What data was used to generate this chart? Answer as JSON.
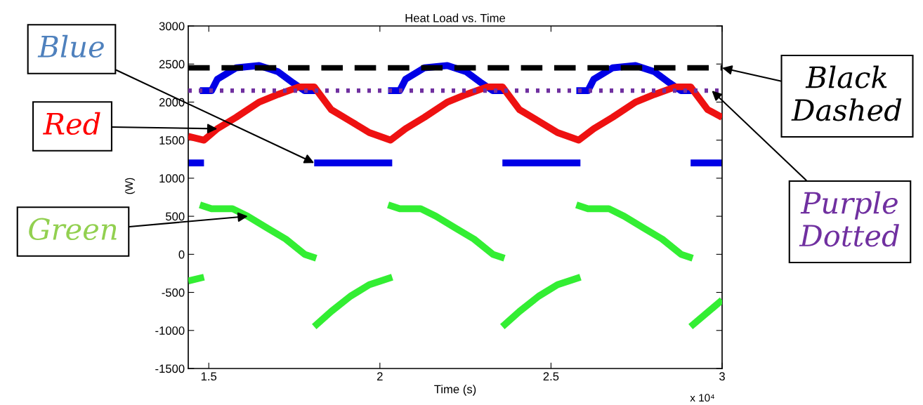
{
  "chart_data": {
    "type": "line",
    "title": "Heat Load vs. Time",
    "xlabel": "Time (s)",
    "ylabel": "(W)",
    "xlim": [
      1.44,
      3.0
    ],
    "ylim": [
      -1500,
      3000
    ],
    "xticks": [
      1.5,
      2,
      2.5,
      3
    ],
    "yticks": [
      -1500,
      -1000,
      -500,
      0,
      500,
      1000,
      1500,
      2000,
      2500,
      3000
    ],
    "grid": false,
    "legend": false,
    "line_style": "solid",
    "series": [
      {
        "color": "#0000e6",
        "x": [
          1.44,
          1.486,
          null,
          1.474,
          1.508,
          1.525,
          1.58,
          1.647,
          1.702,
          1.747,
          1.78,
          1.814,
          null,
          1.808,
          2.036,
          null,
          2.024,
          2.058,
          2.075,
          2.13,
          2.197,
          2.252,
          2.297,
          2.33,
          2.364,
          null,
          2.358,
          2.586,
          null,
          2.574,
          2.608,
          2.625,
          2.68,
          2.747,
          2.802,
          2.847,
          2.88,
          2.914,
          null,
          2.908,
          3.0
        ],
        "values": [
          1200,
          1200,
          null,
          2150,
          2150,
          2300,
          2450,
          2480,
          2400,
          2250,
          2150,
          2150,
          null,
          1200,
          1200,
          null,
          2150,
          2150,
          2300,
          2450,
          2480,
          2400,
          2250,
          2150,
          2150,
          null,
          1200,
          1200,
          null,
          2150,
          2150,
          2300,
          2450,
          2480,
          2400,
          2250,
          2150,
          2150,
          null,
          1200,
          1200
        ]
      },
      {
        "color": "#ee1111",
        "x": [
          1.44,
          1.486,
          1.525,
          1.58,
          1.647,
          1.702,
          1.764,
          1.808,
          1.858,
          1.914,
          1.969,
          2.031,
          2.075,
          2.13,
          2.197,
          2.252,
          2.314,
          2.358,
          2.408,
          2.464,
          2.519,
          2.581,
          2.625,
          2.68,
          2.747,
          2.802,
          2.864,
          2.908,
          2.958,
          3.0
        ],
        "values": [
          1550,
          1500,
          1650,
          1800,
          2000,
          2100,
          2200,
          2200,
          1900,
          1750,
          1600,
          1500,
          1650,
          1800,
          2000,
          2100,
          2200,
          2200,
          1900,
          1750,
          1600,
          1500,
          1650,
          1800,
          2000,
          2100,
          2200,
          2200,
          1900,
          1800
        ]
      },
      {
        "color": "#33ee33",
        "x": [
          1.44,
          1.486,
          null,
          1.474,
          1.508,
          1.569,
          1.614,
          1.669,
          1.725,
          1.78,
          1.814,
          null,
          1.808,
          1.858,
          1.914,
          1.969,
          2.036,
          null,
          2.024,
          2.058,
          2.119,
          2.164,
          2.219,
          2.275,
          2.33,
          2.364,
          null,
          2.358,
          2.408,
          2.464,
          2.519,
          2.586,
          null,
          2.574,
          2.608,
          2.669,
          2.714,
          2.769,
          2.825,
          2.88,
          2.914,
          null,
          2.908,
          3.0
        ],
        "values": [
          -350,
          -300,
          null,
          650,
          600,
          600,
          500,
          350,
          200,
          0,
          -50,
          null,
          -950,
          -750,
          -550,
          -400,
          -300,
          null,
          650,
          600,
          600,
          500,
          350,
          200,
          0,
          -50,
          null,
          -950,
          -750,
          -550,
          -400,
          -300,
          null,
          650,
          600,
          600,
          500,
          350,
          200,
          0,
          -50,
          null,
          -950,
          -600
        ]
      }
    ],
    "ref_lines": [
      {
        "axis": "y",
        "value": 2450,
        "color": "#000000",
        "line_style": "dashed"
      },
      {
        "axis": "y",
        "value": 2150,
        "color": "#7030a0",
        "line_style": "dotted"
      }
    ],
    "annotations": [
      {
        "text": "Blue",
        "x": 1.808,
        "y": 1200
      },
      {
        "text": "Red",
        "x": 1.525,
        "y": 1650
      },
      {
        "text": "Green",
        "x": 1.614,
        "y": 500
      },
      {
        "text": "Black\nDashed",
        "x": 3.0,
        "y": 2450
      },
      {
        "text": "Purple\nDotted",
        "x": 2.97,
        "y": 2150
      },
      "x 10⁴"
    ]
  }
}
